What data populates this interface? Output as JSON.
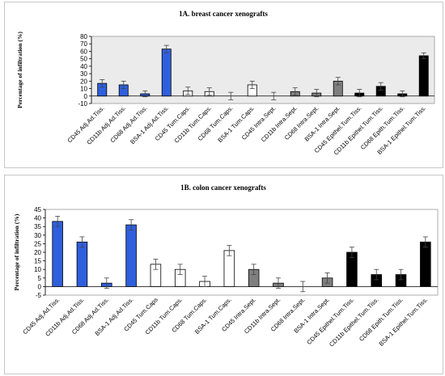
{
  "chart_data": [
    {
      "type": "bar",
      "title": "1A.  breast cancer xenografts",
      "xlabel": "",
      "ylabel": "Percentage of infiltration (%)",
      "ylim": [
        -10,
        80
      ],
      "yticks": [
        -10,
        0,
        10,
        20,
        30,
        40,
        50,
        60,
        70,
        80
      ],
      "grid": false,
      "plot_background": "#ebebeb",
      "categories": [
        "CD45 Adj.Ad.Tiss.",
        "CD11b Adj.Ad.Tiss.",
        "CD68 Adj.Ad.Tiss.",
        "BSA-1 Adj.Ad.Tiss.",
        "CD45 Tum.Caps.",
        "CD11b Tum.Caps.",
        "CD68 Tum.Caps.",
        "BSA-1 Tum.Caps.",
        "CD45 Intra.Sept.",
        "CD11b Intra.Sept.",
        "CD68 Intra.Sept.",
        "BSA-1 Intra.Sept.",
        "CD45 Epithel.Tum.Tiss.",
        "CD11b Epithel.Tum.Tiss.",
        "CD68 Epith.Tum.Tiss.",
        "BSA-1 Epithel.Tum.Tiss."
      ],
      "values": [
        17,
        15,
        3,
        63,
        7,
        6,
        0,
        15,
        0,
        6,
        4,
        20,
        4,
        13,
        3,
        54
      ],
      "errors": [
        5,
        5,
        4,
        5,
        5,
        5,
        5,
        5,
        5,
        5,
        5,
        5,
        5,
        5,
        4,
        4
      ],
      "colors": [
        "#2f5fdc",
        "#2f5fdc",
        "#2f5fdc",
        "#2f5fdc",
        "#ffffff",
        "#ffffff",
        "#ffffff",
        "#ffffff",
        "#7f7f7f",
        "#7f7f7f",
        "#7f7f7f",
        "#7f7f7f",
        "#000000",
        "#000000",
        "#000000",
        "#000000"
      ]
    },
    {
      "type": "bar",
      "title": "1B.  colon cancer xenografts",
      "xlabel": "",
      "ylabel": "Percentage of infiltration (%)",
      "ylim": [
        -5,
        45
      ],
      "yticks": [
        -5,
        0,
        5,
        10,
        15,
        20,
        25,
        30,
        35,
        40,
        45
      ],
      "grid": false,
      "plot_background": "#ffffff",
      "categories": [
        "CD45 Adj.Ad.Tiss.",
        "CD11b Adj.Ad.Tiss.",
        "CD68 Adj.Ad.Tiss.",
        "BSA-1 Adj.Ad.Tiss.",
        "CD45 Tum.Caps",
        "CD11b Tum.Caps.",
        "CD68 Tum.Caps.",
        "BSA-1 Tum.Caps.",
        "CD45 Intra.Sept.",
        "CD11b Intra.Sept.",
        "CD68 Intra.Sept.",
        "BSA-1 Intra.Sept.",
        "CD45 Epithel.Tum.Tiss.",
        "CD11b Epithel.Tum.Tiss.",
        "CD68 Epith.Tum.Tiss.",
        "BSA-1 Epithel.Tum.Tiss."
      ],
      "values": [
        38,
        26,
        2,
        36,
        13,
        10,
        3,
        21,
        10,
        2,
        0,
        5,
        20,
        7,
        7,
        26
      ],
      "errors": [
        3,
        3,
        3,
        3,
        3,
        3,
        3,
        3,
        3,
        3,
        3,
        3,
        3,
        3,
        3,
        3
      ],
      "colors": [
        "#2f5fdc",
        "#2f5fdc",
        "#2f5fdc",
        "#2f5fdc",
        "#ffffff",
        "#ffffff",
        "#ffffff",
        "#ffffff",
        "#7f7f7f",
        "#7f7f7f",
        "#7f7f7f",
        "#7f7f7f",
        "#000000",
        "#000000",
        "#000000",
        "#000000"
      ]
    }
  ]
}
